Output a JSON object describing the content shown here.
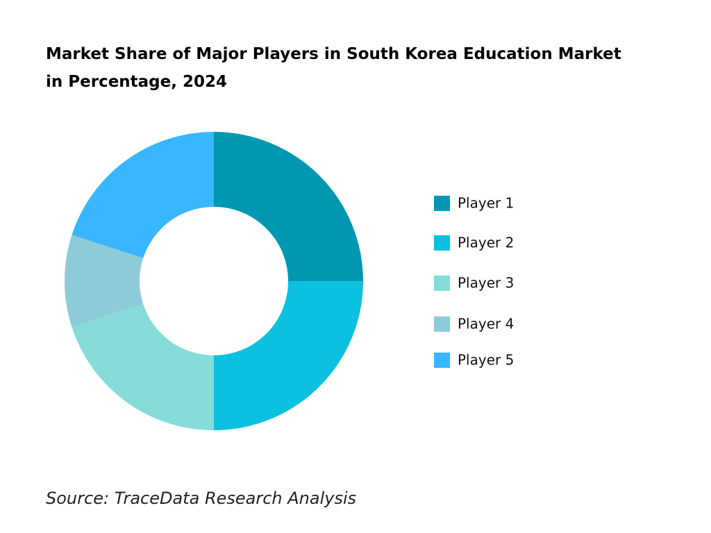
{
  "chart_data": {
    "type": "donut",
    "title": "Market Share of Major Players in South Korea Education Market in Percentage, 2024",
    "categories": [
      "Player 1",
      "Player 2",
      "Player 3",
      "Player 4",
      "Player 5"
    ],
    "values": [
      25,
      25,
      20,
      10,
      20
    ],
    "colors": [
      "#0097b2",
      "#0cc0df",
      "#85dcd9",
      "#8ecbd8",
      "#38b6ff"
    ],
    "source": "Source: TraceData Research Analysis"
  }
}
